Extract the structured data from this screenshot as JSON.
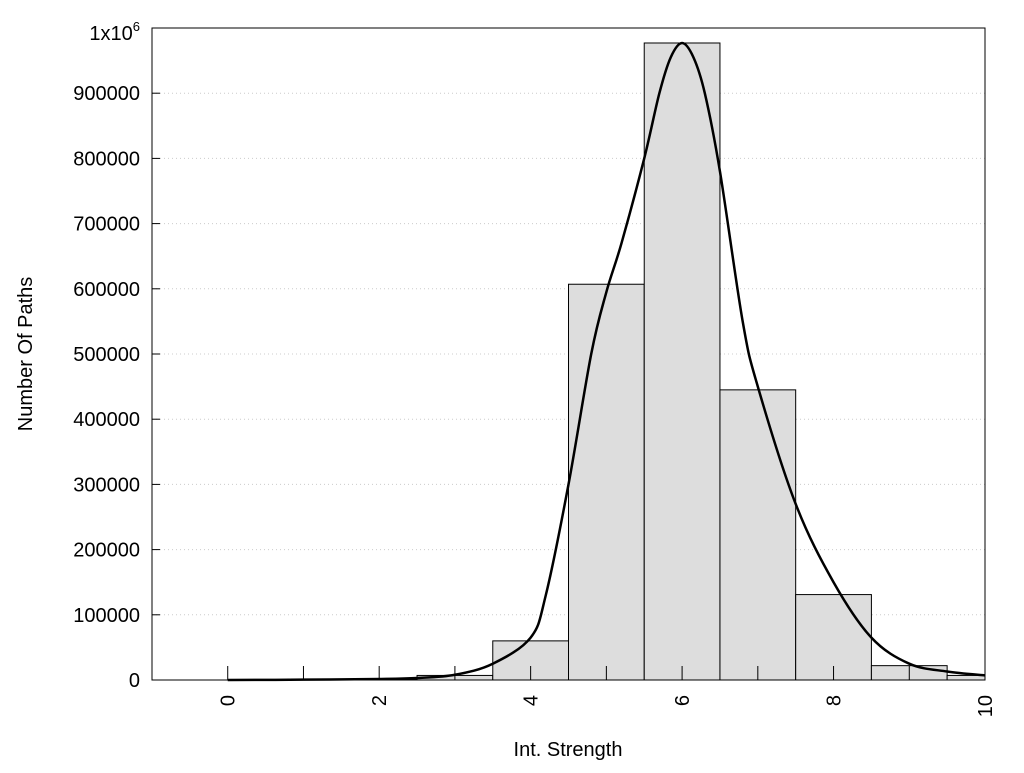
{
  "chart_data": {
    "type": "bar",
    "title": "",
    "xlabel": "Int. Strength",
    "ylabel": "Number Of Paths",
    "xlim": [
      -1,
      10
    ],
    "ylim": [
      0,
      1000000
    ],
    "grid": "horizontal-dotted",
    "x_ticks": [
      0,
      2,
      4,
      6,
      8,
      10
    ],
    "x_tick_labels": [
      "0",
      "2",
      "4",
      "6",
      "8",
      "10"
    ],
    "y_ticks": [
      0,
      100000,
      200000,
      300000,
      400000,
      500000,
      600000,
      700000,
      800000,
      900000
    ],
    "y_tick_labels": [
      "0",
      "100000",
      "200000",
      "300000",
      "400000",
      "500000",
      "600000",
      "700000",
      "800000",
      "900000"
    ],
    "y_top_label_base": "1x10",
    "y_top_label_exp": "6",
    "bar_color": "#dddddd",
    "bars": {
      "x": [
        0,
        1,
        2,
        3,
        4,
        5,
        6,
        7,
        8,
        9,
        10
      ],
      "values": [
        0,
        500,
        1500,
        7000,
        60000,
        607000,
        977000,
        445000,
        131000,
        22000,
        7000
      ]
    },
    "curve": {
      "x": [
        0,
        1,
        2,
        2.5,
        3,
        3.5,
        4,
        4.2,
        4.5,
        4.8,
        5,
        5.2,
        5.5,
        5.7,
        5.85,
        6,
        6.15,
        6.3,
        6.5,
        6.8,
        7,
        7.5,
        8,
        8.5,
        9,
        9.5,
        10
      ],
      "y": [
        0,
        500,
        1500,
        3000,
        8000,
        25000,
        65000,
        130000,
        300000,
        500000,
        595000,
        670000,
        800000,
        900000,
        955000,
        977000,
        955000,
        900000,
        780000,
        550000,
        450000,
        270000,
        150000,
        65000,
        25000,
        13000,
        7000
      ]
    }
  }
}
